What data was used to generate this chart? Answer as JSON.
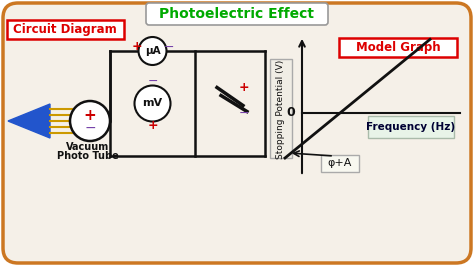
{
  "title": "Photoelectric Effect",
  "title_color": "#00aa00",
  "bg_color": "#f5f0e8",
  "outer_bg": "#ffffff",
  "border_color": "#cc7722",
  "left_label": "Circuit Diagram",
  "right_label": "Model Graph",
  "label_color": "#dd0000",
  "label_bg": "#ffffff",
  "label_border": "#dd0000",
  "ylabel": "Stopping Potential (V)",
  "xlabel": "Frequency (Hz)",
  "zero_label": "0",
  "phi_label": "φ+A",
  "axis_color": "#111111",
  "line_color": "#111111",
  "vacuum_tube_text1": "Vacuum",
  "vacuum_tube_text2": "Photo Tube",
  "uA_label": "μA",
  "mV_label": "mV",
  "plus_color": "#cc0000",
  "minus_color": "#7744aa",
  "minus_color_ua": "#7744aa",
  "cone_color": "#2255cc",
  "wire_color": "#cc9900",
  "title_box_border": "#999999",
  "freq_box_border": "#aabbaa",
  "freq_box_bg": "#e8f4e8",
  "phi_box_border": "#aaaaaa",
  "phi_box_bg": "#f8f8f0"
}
